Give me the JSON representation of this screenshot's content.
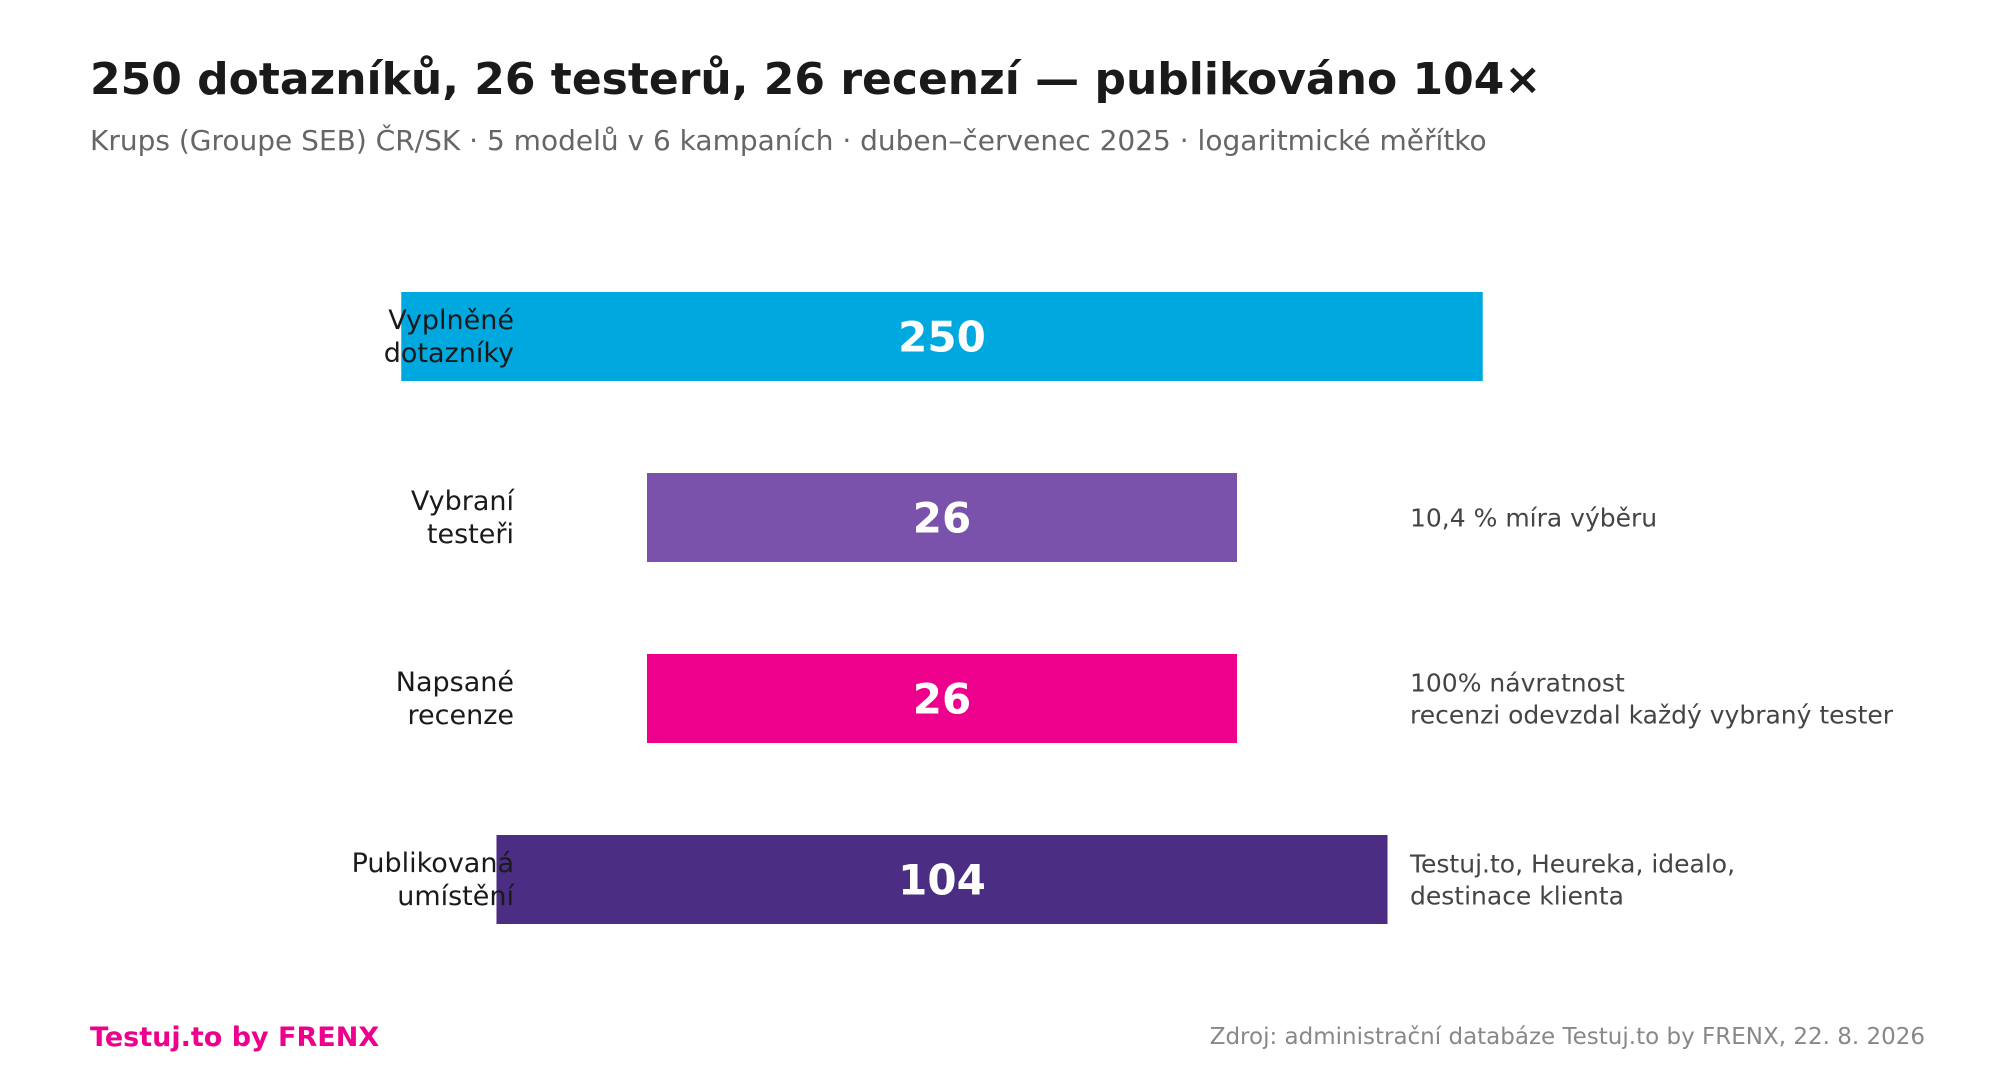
{
  "header": {
    "title": "250 dotazníků, 26 testerů, 26 recenzí — publikováno 104×",
    "subtitle": "Krups (Groupe SEB) ČR/SK · 5 modelů v 6 kampaních · duben–červenec 2025 · logaritmické měřítko"
  },
  "chart_data": {
    "type": "bar",
    "orientation": "horizontal",
    "scale": "log",
    "bar_alignment": "centered",
    "categories": [
      [
        "Vyplněné",
        "dotazníky"
      ],
      [
        "Vybraní",
        "testeři"
      ],
      [
        "Napsané",
        "recenze"
      ],
      [
        "Publikovaná",
        "umístění"
      ]
    ],
    "values": [
      250,
      26,
      26,
      104
    ],
    "value_labels": [
      "250",
      "26",
      "26",
      "104"
    ],
    "colors": [
      "#00a8e0",
      "#7b52ab",
      "#ec008c",
      "#4b2d83"
    ],
    "annotations": [
      [],
      [
        "10,4 % míra výběru"
      ],
      [
        "100% návratnost",
        "recenzi odevzdal každý vybraný tester"
      ],
      [
        "Testuj.to, Heureka, idealo,",
        "destinace klienta"
      ]
    ],
    "grid": false,
    "legend": "none"
  },
  "footer": {
    "brand": "Testuj.to by FRENX",
    "brand_color": "#ec008c",
    "source": "Zdroj: administrační databáze Testuj.to by FRENX, 22. 8. 2026"
  }
}
